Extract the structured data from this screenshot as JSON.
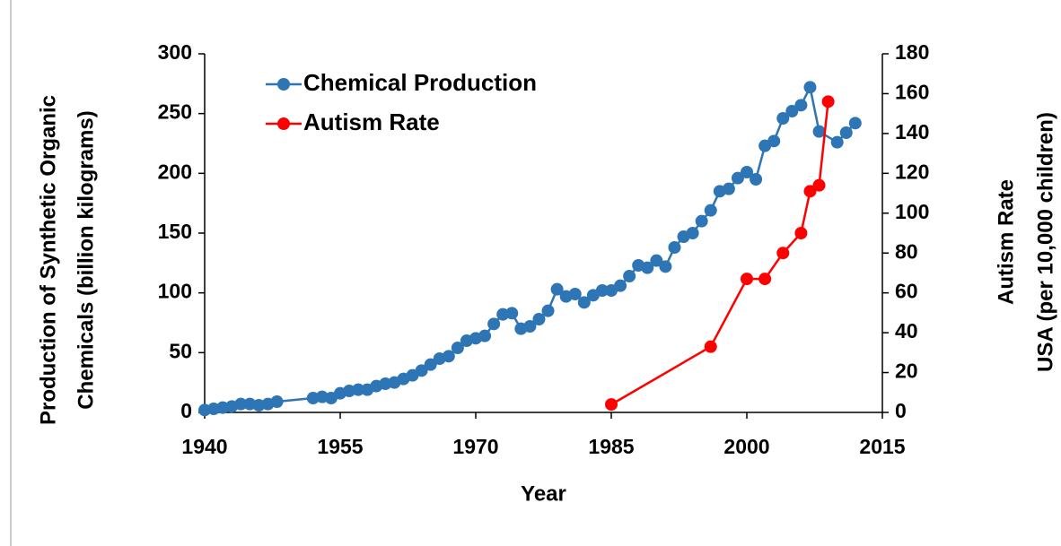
{
  "chart_data": {
    "type": "line",
    "xlabel": "Year",
    "ylabel": [
      "Production of Synthetic Organic",
      "Chemicals (billion kilograms)"
    ],
    "y2label": [
      "Autism Rate",
      "USA (per 10,000 children)"
    ],
    "xlim": [
      1940,
      2015
    ],
    "xticks": [
      1940,
      1955,
      1970,
      1985,
      2000,
      2015
    ],
    "ylim": [
      0,
      300
    ],
    "yticks": [
      0,
      50,
      100,
      150,
      200,
      250,
      300
    ],
    "y2lim": [
      0,
      180
    ],
    "y2ticks": [
      0,
      20,
      40,
      60,
      80,
      100,
      120,
      140,
      160,
      180
    ],
    "legend": "upper left",
    "series": [
      {
        "name": "Chemical Production",
        "color": "#2e75b6",
        "x": [
          1940,
          1941,
          1942,
          1943,
          1944,
          1945,
          1946,
          1947,
          1948,
          1952,
          1953,
          1954,
          1955,
          1956,
          1957,
          1958,
          1959,
          1960,
          1961,
          1962,
          1963,
          1964,
          1965,
          1966,
          1967,
          1968,
          1969,
          1970,
          1971,
          1972,
          1973,
          1974,
          1975,
          1976,
          1977,
          1978,
          1979,
          1980,
          1981,
          1982,
          1983,
          1984,
          1985,
          1986,
          1987,
          1988,
          1989,
          1990,
          1991,
          1992,
          1993,
          1994,
          1995,
          1996,
          1997,
          1998,
          1999,
          2000,
          2001,
          2002,
          2003,
          2004,
          2005,
          2006,
          2007,
          2008,
          2010,
          2011,
          2012
        ],
        "values": [
          2,
          3,
          4,
          5,
          7,
          7,
          6,
          7,
          9,
          12,
          13,
          12,
          16,
          18,
          19,
          19,
          22,
          24,
          25,
          28,
          31,
          35,
          40,
          45,
          47,
          54,
          60,
          62,
          64,
          74,
          82,
          83,
          70,
          72,
          78,
          85,
          103,
          97,
          99,
          92,
          98,
          102,
          102,
          106,
          114,
          123,
          121,
          127,
          122,
          138,
          147,
          150,
          160,
          169,
          185,
          187,
          196,
          201,
          195,
          223,
          227,
          246,
          252,
          257,
          272,
          235,
          226,
          234,
          242
        ]
      },
      {
        "name": "Autism Rate",
        "color": "#ff0000",
        "axis": "y2",
        "x": [
          1985,
          1996,
          2000,
          2002,
          2004,
          2006,
          2007,
          2008,
          2009
        ],
        "values": [
          4,
          33,
          67,
          67,
          80,
          90,
          111,
          114,
          156
        ]
      }
    ]
  }
}
